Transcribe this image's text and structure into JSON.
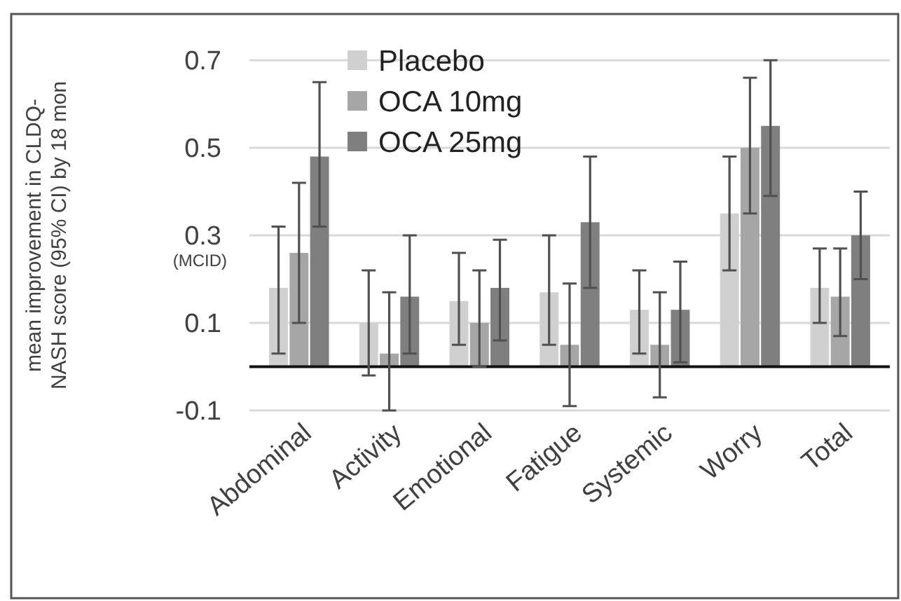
{
  "chart_data": {
    "type": "bar",
    "ylabel": "mean improvement in CLDQ-NASH score (95% CI) by 18 mon",
    "categories": [
      "Abdominal",
      "Activity",
      "Emotional",
      "Fatigue",
      "Systemic",
      "Worry",
      "Total"
    ],
    "series": [
      {
        "name": "Placebo",
        "color": "#d0d0d0",
        "values": [
          0.18,
          0.1,
          0.15,
          0.17,
          0.13,
          0.35,
          0.18
        ],
        "errors": [
          [
            0.03,
            0.32
          ],
          [
            -0.02,
            0.22
          ],
          [
            0.05,
            0.26
          ],
          [
            0.05,
            0.3
          ],
          [
            0.03,
            0.22
          ],
          [
            0.22,
            0.48
          ],
          [
            0.1,
            0.27
          ]
        ]
      },
      {
        "name": "OCA 10mg",
        "color": "#a6a6a6",
        "values": [
          0.26,
          0.03,
          0.1,
          0.05,
          0.05,
          0.5,
          0.16
        ],
        "errors": [
          [
            0.1,
            0.42
          ],
          [
            -0.1,
            0.17
          ],
          [
            0,
            0.22
          ],
          [
            -0.09,
            0.19
          ],
          [
            -0.07,
            0.17
          ],
          [
            0.35,
            0.66
          ],
          [
            0.07,
            0.27
          ]
        ]
      },
      {
        "name": "OCA 25mg",
        "color": "#7f7f7f",
        "values": [
          0.48,
          0.16,
          0.18,
          0.33,
          0.13,
          0.55,
          0.3
        ],
        "errors": [
          [
            0.32,
            0.65
          ],
          [
            0.03,
            0.3
          ],
          [
            0.06,
            0.29
          ],
          [
            0.18,
            0.48
          ],
          [
            0.01,
            0.24
          ],
          [
            0.39,
            0.7
          ],
          [
            0.2,
            0.4
          ]
        ]
      }
    ],
    "ylim": [
      -0.1,
      0.7
    ],
    "yticks": [
      -0.1,
      0.1,
      {
        "value": 0.3,
        "label": "0.3\n(MCID)"
      },
      0.5,
      0.7
    ],
    "grid": "y",
    "legend": "top"
  }
}
